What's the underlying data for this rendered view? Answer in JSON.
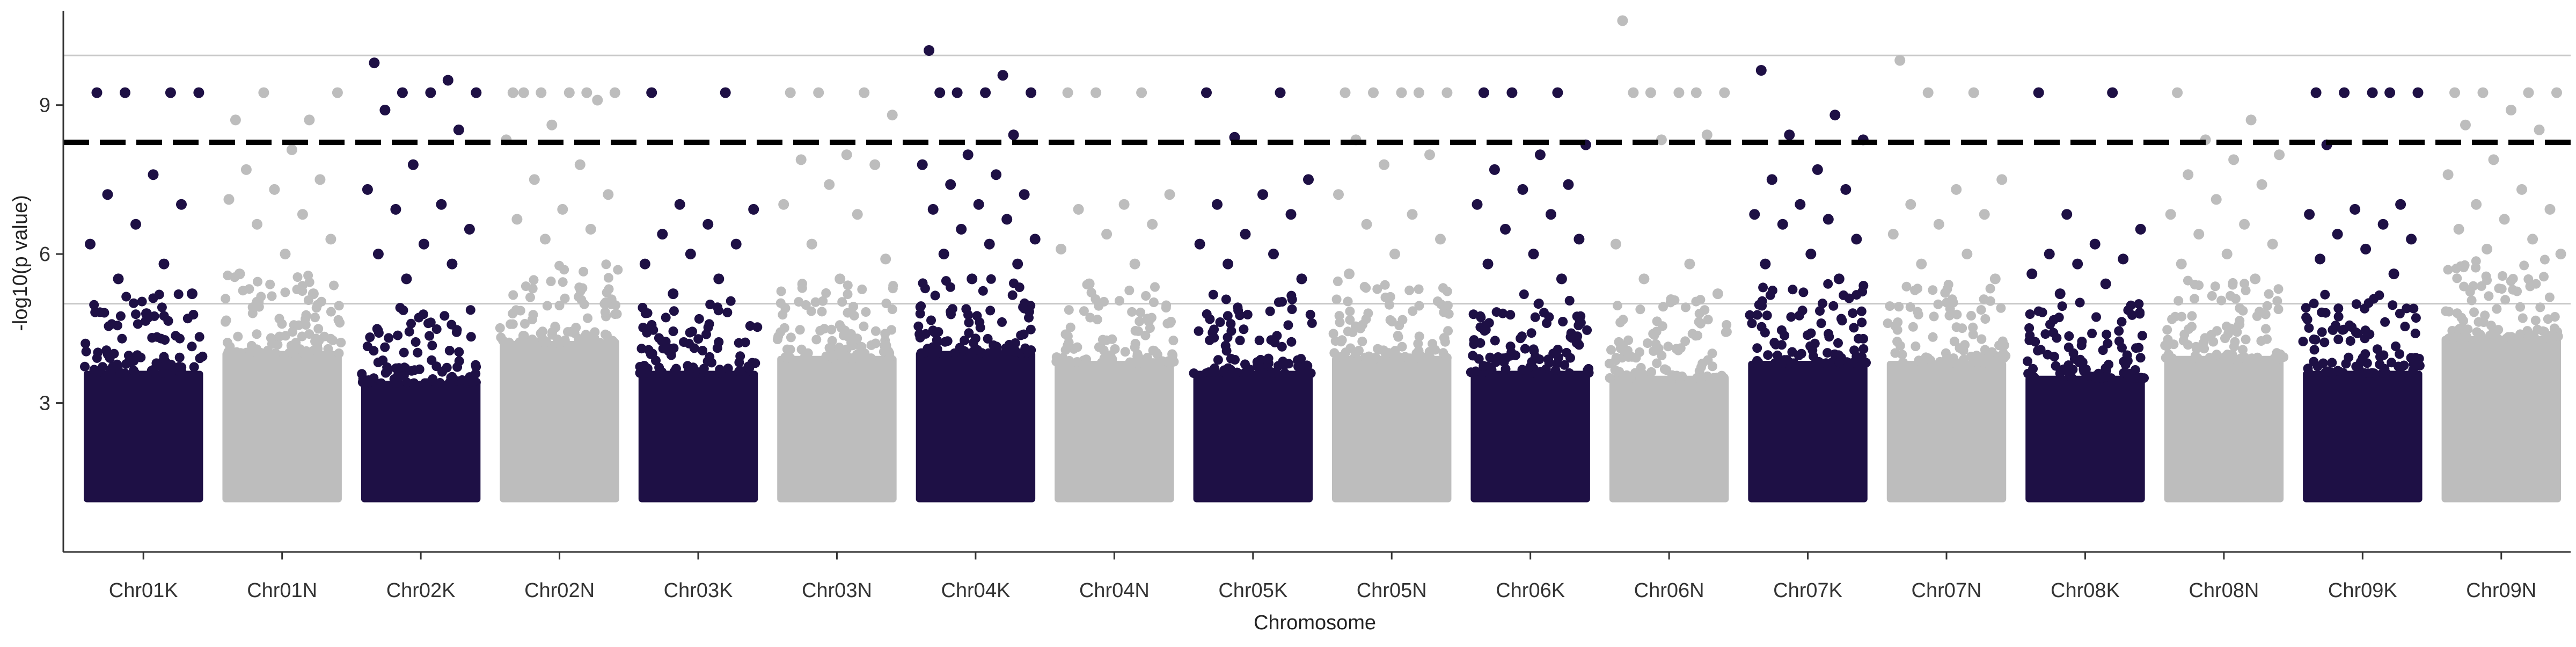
{
  "chart_data": {
    "type": "scatter",
    "subtype": "manhattan",
    "title": "",
    "xlabel": "Chromosome",
    "ylabel": "-log10(p value)",
    "yticks": [
      3,
      6,
      9
    ],
    "ylim": [
      0,
      10.9
    ],
    "grid": "horizontal lines at y = 5 and y = 10",
    "legend": "none",
    "significance_threshold": 8.25,
    "colors": {
      "dark": "#1e1045",
      "light": "#bdbdbd",
      "threshold": "#000000",
      "gridline": "#c8c8c8",
      "axis": "#333333"
    },
    "categories": [
      "Chr01K",
      "Chr01N",
      "Chr02K",
      "Chr02N",
      "Chr03K",
      "Chr03N",
      "Chr04K",
      "Chr04N",
      "Chr05K",
      "Chr05N",
      "Chr06K",
      "Chr06N",
      "Chr07K",
      "Chr07N",
      "Chr08K",
      "Chr08N",
      "Chr09K",
      "Chr09N"
    ],
    "series": [
      {
        "chrom": "Chr01K",
        "color": "dark",
        "bulk_top": 4.0,
        "peak_values": [
          9.25,
          9.25,
          9.25,
          9.25,
          7.6,
          7.2,
          7.0,
          6.6,
          6.2,
          5.8,
          5.5,
          5.2,
          4.8
        ]
      },
      {
        "chrom": "Chr01N",
        "color": "light",
        "bulk_top": 4.4,
        "peak_values": [
          8.7,
          8.7,
          9.25,
          9.25,
          8.1,
          7.7,
          7.5,
          7.3,
          7.1,
          6.8,
          6.6,
          6.3,
          6.0,
          5.6,
          5.2
        ]
      },
      {
        "chrom": "Chr02K",
        "color": "dark",
        "bulk_top": 3.8,
        "peak_values": [
          9.85,
          9.5,
          9.25,
          9.25,
          9.25,
          8.9,
          8.5,
          7.8,
          7.3,
          7.0,
          6.9,
          6.5,
          6.2,
          6.0,
          5.8,
          5.5
        ]
      },
      {
        "chrom": "Chr02N",
        "color": "light",
        "bulk_top": 4.6,
        "peak_values": [
          9.25,
          9.25,
          9.25,
          9.25,
          9.25,
          9.25,
          9.1,
          8.6,
          8.3,
          7.8,
          7.5,
          7.2,
          6.9,
          6.7,
          6.5,
          6.3
        ]
      },
      {
        "chrom": "Chr03K",
        "color": "dark",
        "bulk_top": 4.0,
        "peak_values": [
          9.25,
          9.25,
          7.0,
          6.9,
          6.6,
          6.4,
          6.2,
          6.0,
          5.8,
          5.5,
          5.2
        ]
      },
      {
        "chrom": "Chr03N",
        "color": "light",
        "bulk_top": 4.3,
        "peak_values": [
          9.25,
          9.25,
          9.25,
          8.8,
          8.0,
          7.9,
          7.8,
          7.4,
          7.0,
          6.8,
          6.2,
          5.9,
          5.5
        ]
      },
      {
        "chrom": "Chr04K",
        "color": "dark",
        "bulk_top": 4.4,
        "peak_values": [
          10.1,
          9.6,
          9.25,
          9.25,
          9.25,
          9.25,
          8.4,
          8.0,
          7.8,
          7.6,
          7.4,
          7.2,
          7.0,
          6.9,
          6.7,
          6.5,
          6.3,
          6.2,
          6.0,
          5.8,
          5.5
        ]
      },
      {
        "chrom": "Chr04N",
        "color": "light",
        "bulk_top": 4.2,
        "peak_values": [
          9.25,
          9.25,
          9.25,
          7.2,
          7.0,
          6.9,
          6.6,
          6.4,
          6.1,
          5.8,
          5.4
        ]
      },
      {
        "chrom": "Chr05K",
        "color": "dark",
        "bulk_top": 4.0,
        "peak_values": [
          9.25,
          9.25,
          8.35,
          7.5,
          7.2,
          7.0,
          6.8,
          6.4,
          6.2,
          6.0,
          5.8,
          5.5
        ]
      },
      {
        "chrom": "Chr05N",
        "color": "light",
        "bulk_top": 4.3,
        "peak_values": [
          9.25,
          9.25,
          9.25,
          9.25,
          9.25,
          8.3,
          8.0,
          7.8,
          7.2,
          6.8,
          6.6,
          6.3,
          6.0,
          5.6
        ]
      },
      {
        "chrom": "Chr06K",
        "color": "dark",
        "bulk_top": 4.0,
        "peak_values": [
          9.25,
          9.25,
          9.25,
          8.2,
          8.0,
          7.7,
          7.4,
          7.3,
          7.0,
          6.8,
          6.5,
          6.3,
          6.0,
          5.8,
          5.5
        ]
      },
      {
        "chrom": "Chr06N",
        "color": "light",
        "bulk_top": 3.9,
        "peak_values": [
          10.7,
          9.25,
          9.25,
          9.25,
          9.25,
          9.25,
          8.4,
          8.3,
          6.2,
          5.8,
          5.5,
          5.2
        ]
      },
      {
        "chrom": "Chr07K",
        "color": "dark",
        "bulk_top": 4.2,
        "peak_values": [
          9.7,
          8.8,
          8.4,
          8.3,
          7.7,
          7.5,
          7.3,
          7.0,
          6.8,
          6.7,
          6.6,
          6.3,
          6.0,
          5.8,
          5.5
        ]
      },
      {
        "chrom": "Chr07N",
        "color": "light",
        "bulk_top": 4.2,
        "peak_values": [
          9.9,
          9.25,
          9.25,
          7.5,
          7.3,
          7.0,
          6.8,
          6.6,
          6.4,
          6.0,
          5.8,
          5.5
        ]
      },
      {
        "chrom": "Chr08K",
        "color": "dark",
        "bulk_top": 3.9,
        "peak_values": [
          9.25,
          9.25,
          6.8,
          6.5,
          6.2,
          6.0,
          5.9,
          5.8,
          5.6,
          5.4,
          5.2
        ]
      },
      {
        "chrom": "Chr08N",
        "color": "light",
        "bulk_top": 4.3,
        "peak_values": [
          9.25,
          8.7,
          8.3,
          8.0,
          7.9,
          7.6,
          7.4,
          7.1,
          6.8,
          6.6,
          6.4,
          6.2,
          6.0,
          5.8,
          5.5
        ]
      },
      {
        "chrom": "Chr09K",
        "color": "dark",
        "bulk_top": 4.0,
        "peak_values": [
          9.25,
          9.25,
          9.25,
          9.25,
          9.25,
          8.2,
          7.0,
          6.9,
          6.8,
          6.6,
          6.4,
          6.3,
          6.1,
          5.9,
          5.6
        ]
      },
      {
        "chrom": "Chr09N",
        "color": "light",
        "bulk_top": 4.7,
        "peak_values": [
          9.25,
          9.25,
          9.25,
          9.25,
          8.9,
          8.6,
          8.5,
          7.9,
          7.6,
          7.3,
          7.0,
          6.9,
          6.7,
          6.5,
          6.3,
          6.1,
          6.0
        ]
      }
    ]
  }
}
